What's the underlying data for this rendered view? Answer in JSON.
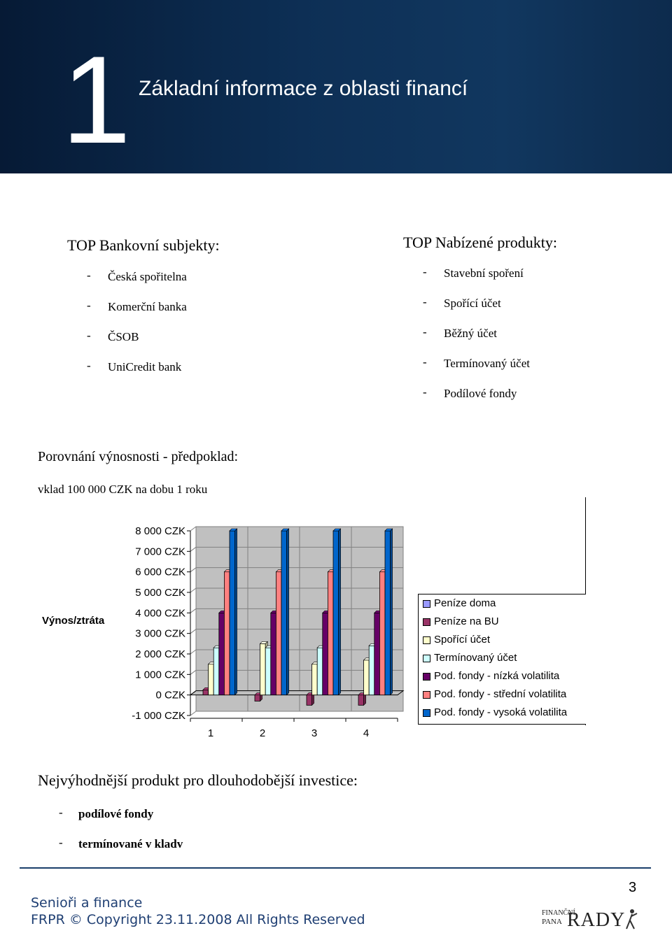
{
  "header": {
    "chapter_number": "1",
    "title": "Základní informace z oblasti financí"
  },
  "banks": {
    "title": "TOP Bankovní subjekty:",
    "items": [
      "Česká spořitelna",
      "Komerční banka",
      "ČSOB",
      "UniCredit bank"
    ]
  },
  "products": {
    "title": "TOP Nabízené produkty:",
    "items": [
      "Stavební spoření",
      "Spořící účet",
      "Běžný účet",
      "Termínovaný účet",
      "Podílové fondy"
    ]
  },
  "comparison": {
    "title": "Porovnání výnosnosti - předpoklad:",
    "subtitle": "vklad 100 000 CZK na dobu 1 roku"
  },
  "chart_data": {
    "type": "bar",
    "ylabel": "Výnos/ztráta",
    "xlabel": "",
    "ylim": [
      -1000,
      8000
    ],
    "yticks": [
      "8 000 CZK",
      "7 000 CZK",
      "6 000 CZK",
      "5 000 CZK",
      "4 000 CZK",
      "3 000 CZK",
      "2 000 CZK",
      "1 000 CZK",
      "0 CZK",
      "-1 000 CZK"
    ],
    "categories": [
      "1",
      "2",
      "3",
      "4"
    ],
    "grid": true,
    "three_d": true,
    "legend_position": "right",
    "series": [
      {
        "name": "Peníze doma",
        "color": "#9999ff",
        "values": [
          0,
          0,
          0,
          0
        ]
      },
      {
        "name": "Peníze na BU",
        "color": "#993366",
        "values": [
          250,
          -300,
          -500,
          -500
        ]
      },
      {
        "name": "Spořící účet",
        "color": "#ffffcc",
        "values": [
          1500,
          2500,
          1500,
          1700
        ]
      },
      {
        "name": "Termínovaný účet",
        "color": "#ccffff",
        "values": [
          2300,
          2300,
          2300,
          2400
        ]
      },
      {
        "name": "Pod. fondy - nízká volatilita",
        "color": "#660066",
        "values": [
          4000,
          4000,
          4000,
          4000
        ]
      },
      {
        "name": "Pod. fondy - střední volatilita",
        "color": "#ff8080",
        "values": [
          6000,
          6000,
          6000,
          6000
        ]
      },
      {
        "name": "Pod. fondy - vysoká volatilita",
        "color": "#0066cc",
        "values": [
          8000,
          8000,
          8000,
          8000
        ]
      }
    ]
  },
  "best": {
    "title": "Nejvýhodnější produkt pro dlouhodobější investice:",
    "items": [
      "podílové fondy",
      "termínované v kladv"
    ]
  },
  "footer": {
    "page_number": "3",
    "line1": "Senioři a finance",
    "line2": "FRPR © Copyright 23.11.2008 All Rights Reserved",
    "logo_top": "FINANČNÍ",
    "logo_bottom": "PANA",
    "logo_main": "RADY"
  }
}
